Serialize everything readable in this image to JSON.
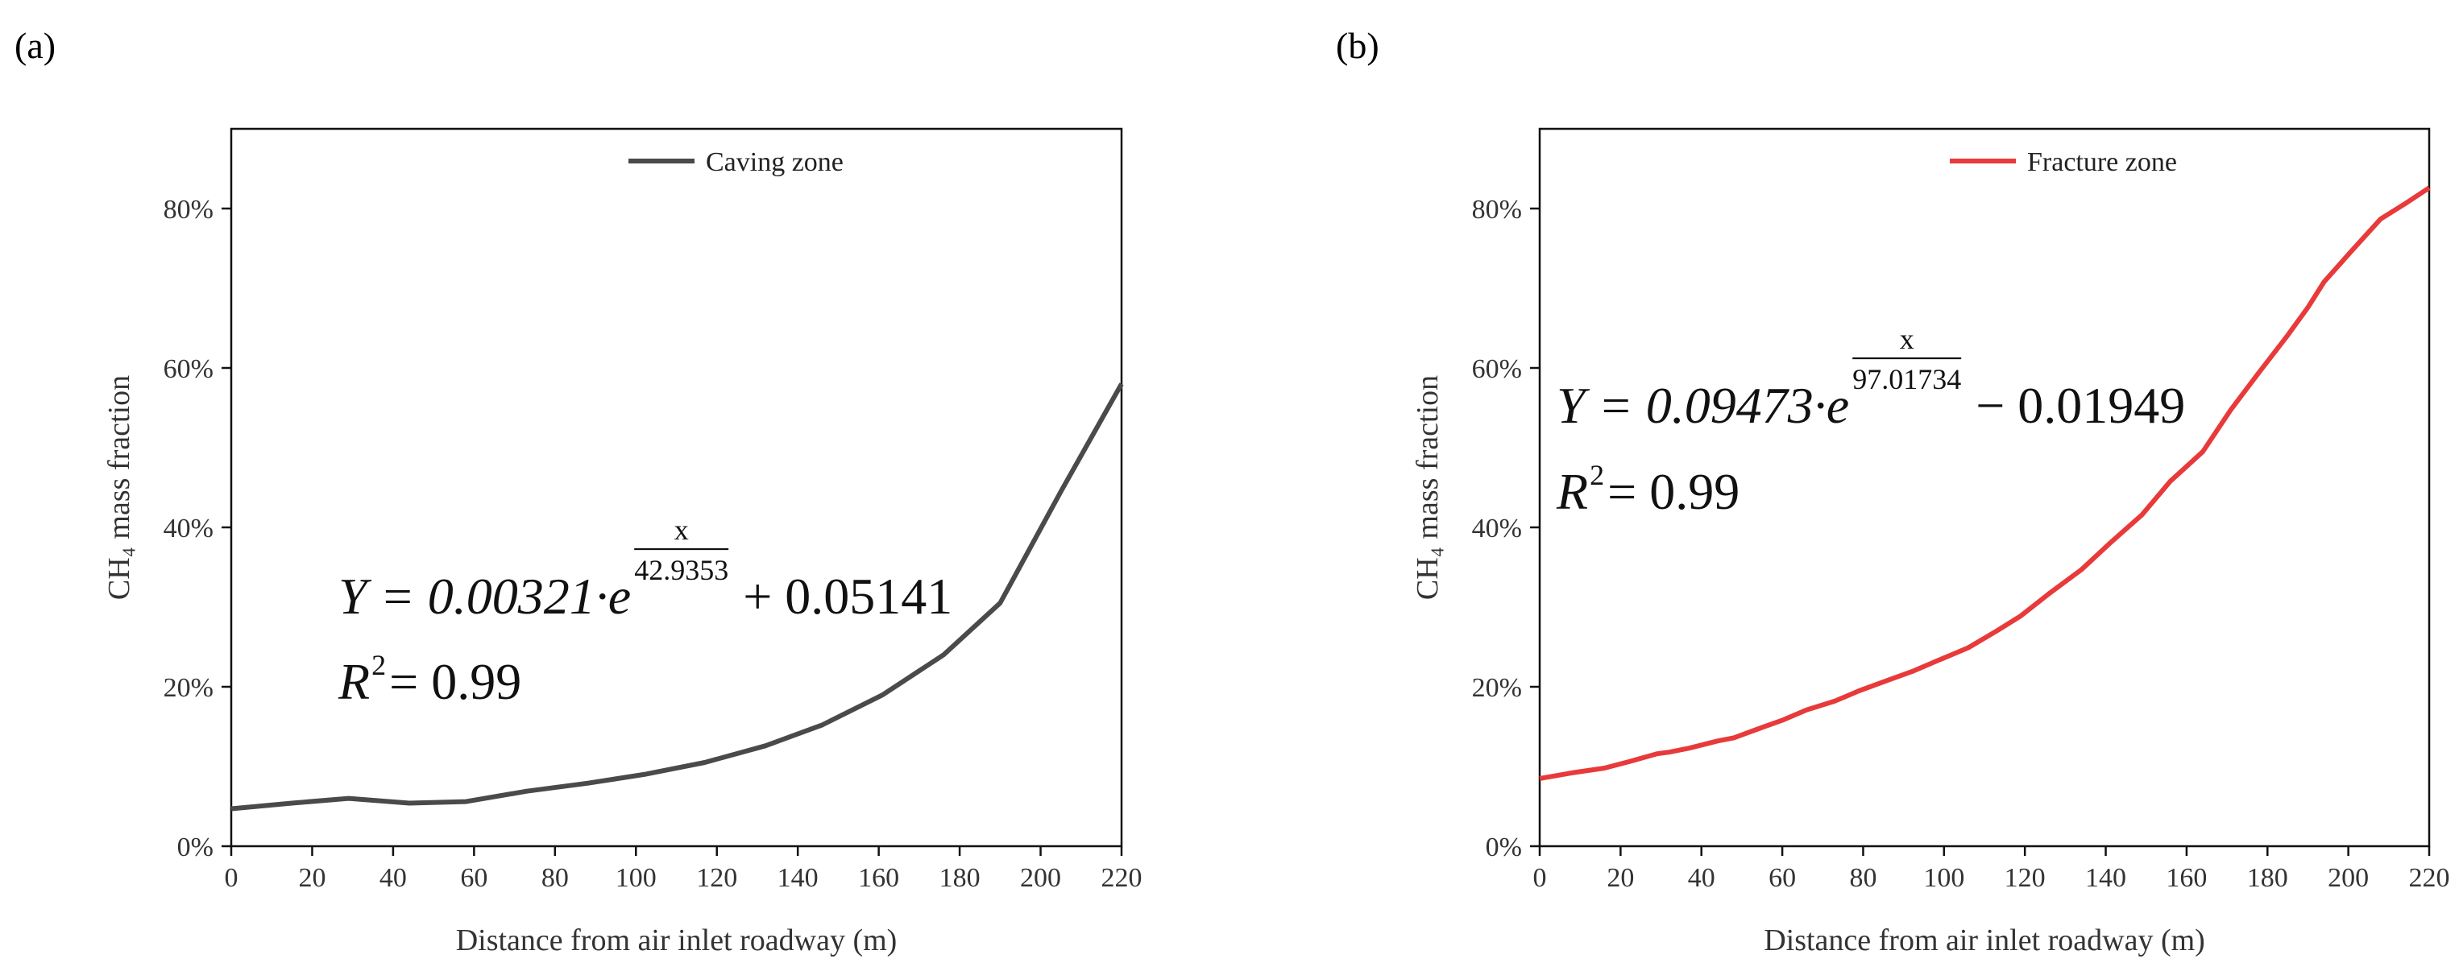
{
  "chart_data": [
    {
      "type": "line",
      "panel_label": "(a)",
      "xlabel": "Distance from air inlet roadway (m)",
      "ylabel": "CH₄ mass fraction",
      "xlim": [
        0,
        220
      ],
      "ylim": [
        0,
        90
      ],
      "xticks": [
        0,
        20,
        40,
        60,
        80,
        100,
        120,
        140,
        160,
        180,
        200,
        220
      ],
      "xtick_labels": [
        "0",
        "20",
        "40",
        "60",
        "80",
        "100",
        "120",
        "140",
        "160",
        "180",
        "200",
        "220"
      ],
      "yticks": [
        0,
        20,
        40,
        60,
        80
      ],
      "ytick_labels": [
        "0%",
        "20%",
        "40%",
        "60%",
        "80%"
      ],
      "legend_position": "top-center",
      "series": [
        {
          "name": "Caving zone",
          "color": "#4a4a4a",
          "x": [
            0,
            15,
            29,
            44,
            58,
            73,
            88,
            102,
            117,
            132,
            146,
            161,
            176,
            190,
            205,
            220
          ],
          "y": [
            4.7,
            5.4,
            6.0,
            5.4,
            5.6,
            6.9,
            7.9,
            9.0,
            10.5,
            12.6,
            15.2,
            19.0,
            24.0,
            30.5,
            44.5,
            58.0
          ]
        }
      ],
      "equation": {
        "prefix": "Y = 0.00321·e",
        "exp_numerator": "x",
        "exp_denominator": "42.9353",
        "suffix": "+ 0.05141",
        "r2_base": "R",
        "r2_power": "2",
        "r2_value": " = 0.99"
      }
    },
    {
      "type": "line",
      "panel_label": "(b)",
      "xlabel": "Distance from air inlet roadway (m)",
      "ylabel": "CH₄ mass fraction",
      "xlim": [
        0,
        220
      ],
      "ylim": [
        0,
        90
      ],
      "xticks": [
        0,
        20,
        40,
        60,
        80,
        100,
        120,
        140,
        160,
        180,
        200,
        220
      ],
      "xtick_labels": [
        "0",
        "20",
        "40",
        "60",
        "80",
        "100",
        "120",
        "140",
        "160",
        "180",
        "200",
        "220"
      ],
      "yticks": [
        0,
        20,
        40,
        60,
        80
      ],
      "ytick_labels": [
        "0%",
        "20%",
        "40%",
        "60%",
        "80%"
      ],
      "legend_position": "top-center",
      "series": [
        {
          "name": "Fracture zone",
          "color": "#e83a3a",
          "x": [
            0,
            8,
            16,
            22,
            29,
            32,
            37,
            44,
            48,
            55,
            60,
            66,
            73,
            79,
            86,
            92,
            99,
            106,
            113,
            119,
            126,
            134,
            141,
            149,
            156,
            164,
            171,
            178,
            185,
            190,
            194,
            201,
            208,
            214,
            220
          ],
          "y": [
            8.5,
            9.2,
            9.8,
            10.6,
            11.6,
            11.8,
            12.3,
            13.2,
            13.6,
            14.9,
            15.8,
            17.1,
            18.2,
            19.5,
            20.8,
            21.9,
            23.4,
            24.9,
            27.0,
            28.9,
            31.7,
            34.7,
            38.0,
            41.6,
            45.8,
            49.5,
            54.8,
            59.5,
            64.1,
            67.6,
            70.8,
            74.8,
            78.7,
            80.6,
            82.6
          ]
        }
      ],
      "equation": {
        "prefix": "Y = 0.09473·e",
        "exp_numerator": "x",
        "exp_denominator": "97.01734",
        "suffix": "− 0.01949",
        "r2_base": "R",
        "r2_power": "2",
        "r2_value": " = 0.99"
      }
    }
  ]
}
